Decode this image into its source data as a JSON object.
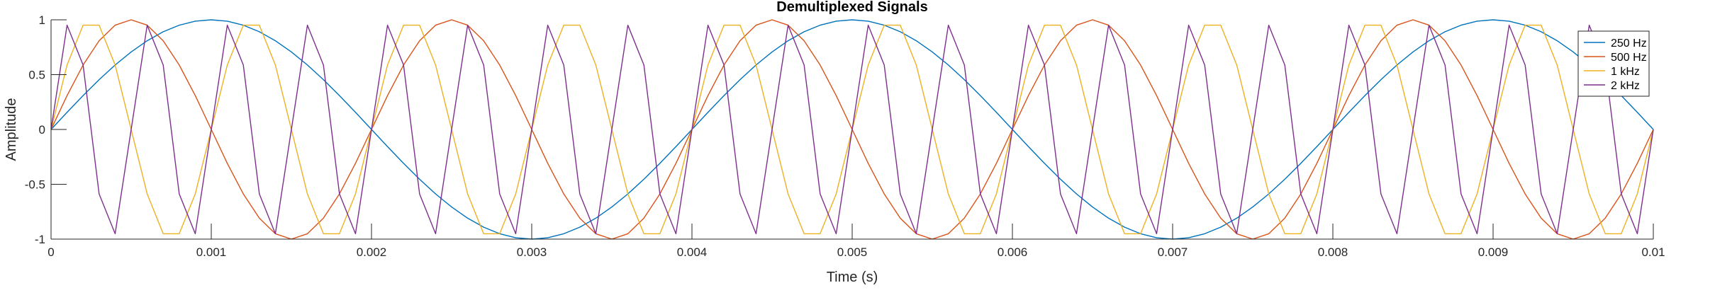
{
  "chart_data": {
    "type": "line",
    "title": "Demultiplexed Signals",
    "xlabel": "Time (s)",
    "ylabel": "Amplitude",
    "xlim": [
      0,
      0.01
    ],
    "ylim": [
      -1,
      1
    ],
    "x_ticks": [
      0,
      0.001,
      0.002,
      0.003,
      0.004,
      0.005,
      0.006,
      0.007,
      0.008,
      0.009,
      0.01
    ],
    "x_tick_labels": [
      "0",
      "0.001",
      "0.002",
      "0.003",
      "0.004",
      "0.005",
      "0.006",
      "0.007",
      "0.008",
      "0.009",
      "0.01"
    ],
    "y_ticks": [
      -1,
      -0.5,
      0,
      0.5,
      1
    ],
    "y_tick_labels": [
      "-1",
      "-0.5",
      "0",
      "0.5",
      "1"
    ],
    "grid": false,
    "legend_position": "top-right",
    "sample_interval": 0.0001,
    "series": [
      {
        "name": "250 Hz",
        "frequency": 250,
        "color": "#0072BD"
      },
      {
        "name": "500 Hz",
        "frequency": 500,
        "color": "#D95319"
      },
      {
        "name": "1 kHz",
        "frequency": 1000,
        "color": "#EDB120"
      },
      {
        "name": "2 kHz",
        "frequency": 2000,
        "color": "#7E2F8E"
      }
    ]
  }
}
